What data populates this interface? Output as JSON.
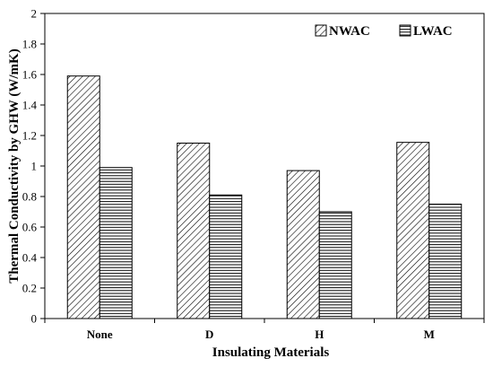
{
  "chart_data": {
    "type": "bar",
    "title": "",
    "xlabel": "Insulating Materials",
    "ylabel": "Thermal Conductivity by GHW (W/mK)",
    "categories": [
      "None",
      "D",
      "H",
      "M"
    ],
    "series": [
      {
        "name": "NWAC",
        "values": [
          1.59,
          1.15,
          0.97,
          1.155
        ],
        "pattern": "diagonal-hatch"
      },
      {
        "name": "LWAC",
        "values": [
          0.99,
          0.81,
          0.7,
          0.75
        ],
        "pattern": "horizontal-lines"
      }
    ],
    "ylim": [
      0,
      2
    ],
    "yticks": [
      "0",
      "0.2",
      "0.4",
      "0.6",
      "0.8",
      "1",
      "1.2",
      "1.4",
      "1.6",
      "1.8",
      "2"
    ],
    "grid": false,
    "legend": "top-right",
    "colors": {
      "bar_fill": "#ffffff",
      "pattern": "#000000",
      "axis": "#000000"
    }
  }
}
